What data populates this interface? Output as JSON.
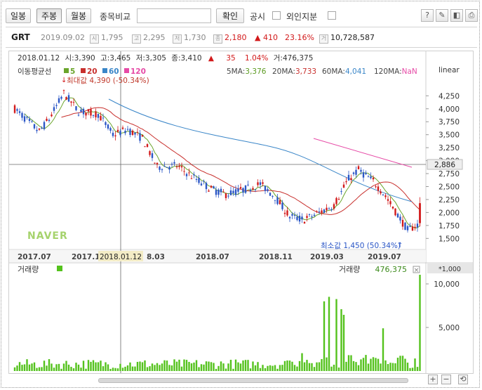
{
  "toolbar": {
    "daily": "일봉",
    "weekly": "주봉",
    "monthly": "월봉",
    "compare_label": "종목비교",
    "compare_value": "",
    "confirm": "확인",
    "disclosure": "공시",
    "foreign": "외인지분"
  },
  "quote": {
    "name": "GRT",
    "date": "2019.09.02",
    "open": "1,795",
    "high": "2,295",
    "low": "1,730",
    "close": "2,180",
    "change_arrow": "▲",
    "change": "410",
    "change_pct": "23.16%",
    "volume": "10,728,587",
    "tags": {
      "open": "시",
      "high": "고",
      "low": "저",
      "close": "종",
      "volume": "거"
    }
  },
  "crosshair": {
    "date": "2018.01.12",
    "open_label": "시:",
    "open": "3,390",
    "high_label": "고:",
    "high": "3,465",
    "low_label": "저:",
    "low": "3,305",
    "close_label": "종:",
    "close": "3,410",
    "arrow": "▲",
    "change": "35",
    "change_pct": "1.04%",
    "vol_label": "거:",
    "vol": "476,375",
    "x_label": "2018.01.12"
  },
  "ma": {
    "title": "이동평균선",
    "items": [
      {
        "period": "5",
        "color": "#6aa52b"
      },
      {
        "period": "20",
        "color": "#c8302d"
      },
      {
        "period": "60",
        "color": "#3a86c8"
      },
      {
        "period": "120",
        "color": "#e64aa6"
      }
    ],
    "values": [
      {
        "label": "5MA:",
        "value": "3,376",
        "color": "#5b9a20"
      },
      {
        "label": "20MA:",
        "value": "3,733",
        "color": "#c8302d"
      },
      {
        "label": "60MA:",
        "value": "4,041",
        "color": "#3a86c8"
      },
      {
        "label": "120MA:",
        "value": "NaN",
        "color": "#e64aa6"
      }
    ],
    "scale": "linear"
  },
  "annotations": {
    "max": "최대값 4,390 (-50.34%)",
    "max_arrow": "↓",
    "min": "최소값 1,450 (50.34%)",
    "min_arrow": "↑",
    "logo": "NAVER"
  },
  "price_axis": {
    "ticks": [
      "4,250",
      "4,000",
      "3,750",
      "3,500",
      "3,250",
      "3,000",
      "2,750",
      "2,500",
      "2,250",
      "2,000",
      "1,750",
      "1,500"
    ],
    "current": "2,886"
  },
  "date_axis": [
    "2017.07",
    "2017.1",
    "8.03",
    "2018.07",
    "2018.11",
    "2019.03",
    "2019.07"
  ],
  "volume": {
    "title": "거래량",
    "right_label": "거래량",
    "right_value": "476,375",
    "unit": "*1,000",
    "ticks": [
      "10,000",
      "5,000"
    ],
    "bar_color": "#54c21c"
  },
  "colors": {
    "up": "#d2191a",
    "down": "#2a56c6",
    "crosshair": "#555555"
  }
}
